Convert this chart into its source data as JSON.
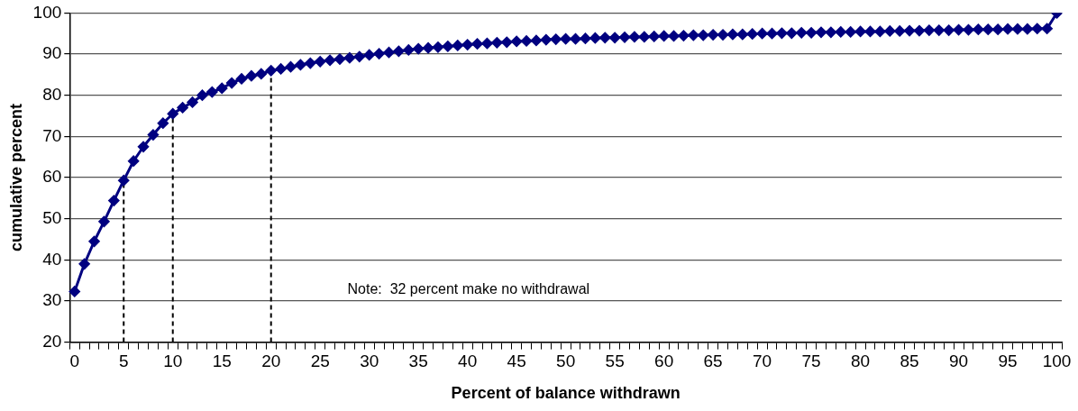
{
  "chart_data": {
    "type": "line",
    "xlabel": "Percent of balance withdrawn",
    "ylabel": "cumulative percent",
    "categories": [
      "0",
      null,
      null,
      null,
      null,
      "5",
      null,
      null,
      null,
      null,
      "10",
      null,
      null,
      null,
      null,
      "15",
      null,
      null,
      null,
      null,
      "20",
      null,
      null,
      null,
      null,
      "25",
      null,
      null,
      null,
      null,
      "30",
      null,
      null,
      null,
      null,
      "35",
      null,
      null,
      null,
      null,
      "40",
      null,
      null,
      null,
      null,
      "45",
      null,
      null,
      null,
      null,
      "50",
      null,
      null,
      null,
      null,
      "55",
      null,
      null,
      null,
      null,
      "60",
      null,
      null,
      null,
      null,
      "65",
      null,
      null,
      null,
      null,
      "70",
      null,
      null,
      null,
      null,
      "75",
      null,
      null,
      null,
      null,
      "80",
      null,
      null,
      null,
      null,
      "85",
      null,
      null,
      null,
      null,
      "90",
      null,
      null,
      null,
      null,
      "95",
      null,
      null,
      null,
      null,
      "100"
    ],
    "series": [
      {
        "color": "#000080",
        "values": [
          32.3,
          39,
          44.5,
          49.3,
          54.4,
          59.3,
          64,
          67.5,
          70.4,
          73.2,
          75.5,
          77,
          78.3,
          80,
          80.8,
          81.7,
          83,
          84,
          84.7,
          85.2,
          86,
          86.4,
          86.9,
          87.4,
          87.8,
          88.2,
          88.5,
          88.8,
          89.1,
          89.4,
          89.8,
          90.1,
          90.4,
          90.7,
          91,
          91.3,
          91.5,
          91.7,
          91.9,
          92.1,
          92.3,
          92.5,
          92.6,
          92.8,
          92.9,
          93.1,
          93.2,
          93.3,
          93.5,
          93.6,
          93.7,
          93.7,
          93.8,
          93.9,
          94,
          94,
          94.1,
          94.2,
          94.2,
          94.3,
          94.4,
          94.4,
          94.5,
          94.6,
          94.6,
          94.7,
          94.7,
          94.8,
          94.8,
          94.9,
          95,
          95,
          95.1,
          95.1,
          95.2,
          95.2,
          95.3,
          95.3,
          95.4,
          95.4,
          95.5,
          95.5,
          95.5,
          95.6,
          95.6,
          95.7,
          95.7,
          95.8,
          95.8,
          95.8,
          95.9,
          95.9,
          96,
          96,
          96,
          96.1,
          96.1,
          96.1,
          96.2,
          96.2,
          100
        ]
      }
    ],
    "ylim": [
      20,
      100
    ],
    "yticks": [
      20,
      30,
      40,
      50,
      60,
      70,
      80,
      90,
      100
    ],
    "grid": "y",
    "legend": false,
    "marker": "diamond",
    "line_style": "solid",
    "ref_lines": [
      {
        "axis": "x",
        "value": "5",
        "color": "#000000",
        "line_style": "dashed"
      },
      {
        "axis": "x",
        "value": "10",
        "color": "#000000",
        "line_style": "dashed"
      },
      {
        "axis": "x",
        "value": "20",
        "color": "#000000",
        "line_style": "dashed"
      }
    ],
    "annotations": [
      "Note:  32 percent make no withdrawal"
    ]
  }
}
